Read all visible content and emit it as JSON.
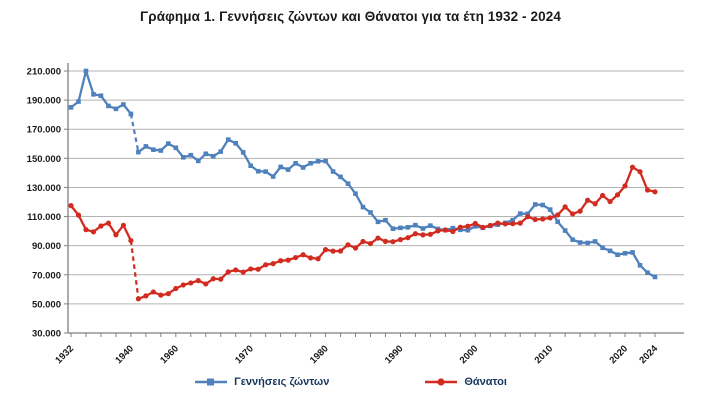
{
  "title": "Γράφημα 1.  Γεννήσεις ζώντων και Θάνατοι για τα έτη 1932 - 2024",
  "legend": {
    "births_label": "Γεννήσεις ζώντων",
    "deaths_label": "Θάνατοι"
  },
  "colors": {
    "births": "#4f81bd",
    "deaths": "#d22b20",
    "grid": "#b3b3b3",
    "axis": "#808080",
    "tick_text": "#1a1a1a",
    "legend_text": "#17375e",
    "background": "#ffffff"
  },
  "chart_data": {
    "type": "line",
    "title": "Γράφημα 1.  Γεννήσεις ζώντων και Θάνατοι για τα έτη 1932 - 2024",
    "xlabel": "",
    "ylabel": "",
    "grid": true,
    "legend_position": "bottom",
    "ylim": [
      30000,
      210000
    ],
    "ytick_step": 20000,
    "y_tick_labels": [
      "210.000",
      "190.000",
      "170.000",
      "150.000",
      "130.000",
      "110.000",
      "90.000",
      "70.000",
      "50.000",
      "30.000"
    ],
    "x_tick_years": [
      1932,
      1940,
      1960,
      1970,
      1980,
      1990,
      2000,
      2010,
      2020,
      2024
    ],
    "data_gap": {
      "from_year": 1940,
      "to_year": 1955,
      "style": "dashed",
      "note": "missing war years shown with dashed connector"
    },
    "x": [
      1932,
      1933,
      1934,
      1935,
      1936,
      1937,
      1938,
      1939,
      1940,
      1955,
      1956,
      1957,
      1958,
      1959,
      1960,
      1961,
      1962,
      1963,
      1964,
      1965,
      1966,
      1967,
      1968,
      1969,
      1970,
      1971,
      1972,
      1973,
      1974,
      1975,
      1976,
      1977,
      1978,
      1979,
      1980,
      1981,
      1982,
      1983,
      1984,
      1985,
      1986,
      1987,
      1988,
      1989,
      1990,
      1991,
      1992,
      1993,
      1994,
      1995,
      1996,
      1997,
      1998,
      1999,
      2000,
      2001,
      2002,
      2003,
      2004,
      2005,
      2006,
      2007,
      2008,
      2009,
      2010,
      2011,
      2012,
      2013,
      2014,
      2015,
      2016,
      2017,
      2018,
      2019,
      2020,
      2021,
      2022,
      2023,
      2024
    ],
    "series": [
      {
        "name": "Γεννήσεις ζώντων",
        "color": "#4f81bd",
        "marker": "square",
        "values": [
          185000,
          189000,
          210000,
          194000,
          193000,
          186000,
          184000,
          187000,
          180500,
          154263,
          158203,
          155940,
          155359,
          160129,
          157239,
          150716,
          152158,
          148249,
          153109,
          151448,
          154613,
          162839,
          160338,
          154077,
          144928,
          141126,
          140891,
          137526,
          144069,
          142273,
          146566,
          143739,
          146588,
          147965,
          148134,
          140953,
          137275,
          132608,
          125724,
          116481,
          112810,
          106392,
          107505,
          101657,
          102229,
          102620,
          104081,
          101799,
          103763,
          101495,
          100718,
          102038,
          100894,
          100643,
          103274,
          102282,
          103569,
          104420,
          105655,
          107545,
          112042,
          111926,
          118302,
          117933,
          114766,
          106428,
          100371,
          94134,
          92149,
          91847,
          92898,
          88553,
          86440,
          83763,
          84767,
          85346,
          76541,
          71455,
          68500
        ]
      },
      {
        "name": "Θάνατοι",
        "color": "#d22b20",
        "marker": "circle",
        "values": [
          117500,
          111000,
          101000,
          99500,
          103500,
          105500,
          97500,
          104000,
          93500,
          53500,
          55500,
          58200,
          56000,
          57000,
          60563,
          63000,
          64400,
          66000,
          63700,
          67269,
          67000,
          71975,
          73309,
          71825,
          74009,
          73819,
          76859,
          77648,
          79621,
          80077,
          81818,
          83750,
          81616,
          81021,
          87282,
          86261,
          86345,
          90586,
          88397,
          92886,
          91442,
          95235,
          92955,
          92717,
          94152,
          95498,
          98231,
          97419,
          97807,
          100158,
          100740,
          99738,
          102668,
          103330,
          105219,
          102559,
          103915,
          105529,
          104942,
          105091,
          105476,
          109895,
          107979,
          108316,
          109084,
          111099,
          116668,
          111794,
          113740,
          121212,
          118783,
          124501,
          120297,
          124954,
          131084,
          143923,
          140801,
          128259,
          127000
        ]
      }
    ]
  }
}
